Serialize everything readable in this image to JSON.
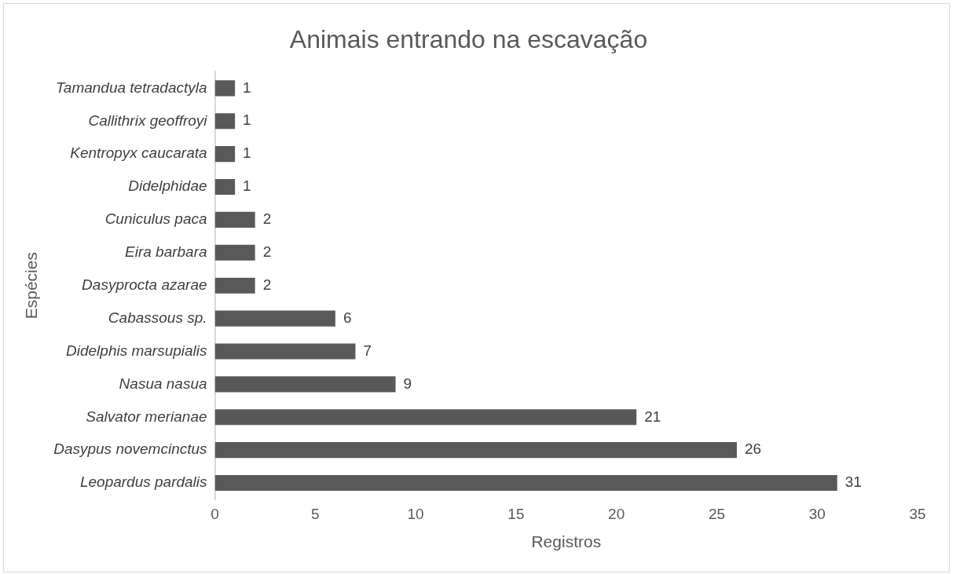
{
  "chart_data": {
    "type": "bar",
    "title": "Animais entrando na escavação",
    "xlabel": "Registros",
    "ylabel": "Espécies",
    "orientation": "horizontal",
    "categories": [
      "Tamandua tetradactyla",
      "Callithrix geoffroyi",
      "Kentropyx caucarata",
      "Didelphidae",
      "Cuniculus paca",
      "Eira barbara",
      "Dasyprocta azarae",
      "Cabassous sp.",
      "Didelphis marsupialis",
      "Nasua nasua",
      "Salvator merianae",
      "Dasypus novemcinctus",
      "Leopardus pardalis"
    ],
    "values": [
      1,
      1,
      1,
      1,
      2,
      2,
      2,
      6,
      7,
      9,
      21,
      26,
      31
    ],
    "color": "#595959",
    "xlim": [
      0,
      35
    ],
    "xticks": [
      0,
      5,
      10,
      15,
      20,
      25,
      30,
      35
    ],
    "grid": false,
    "legend": false,
    "data_labels": true
  }
}
